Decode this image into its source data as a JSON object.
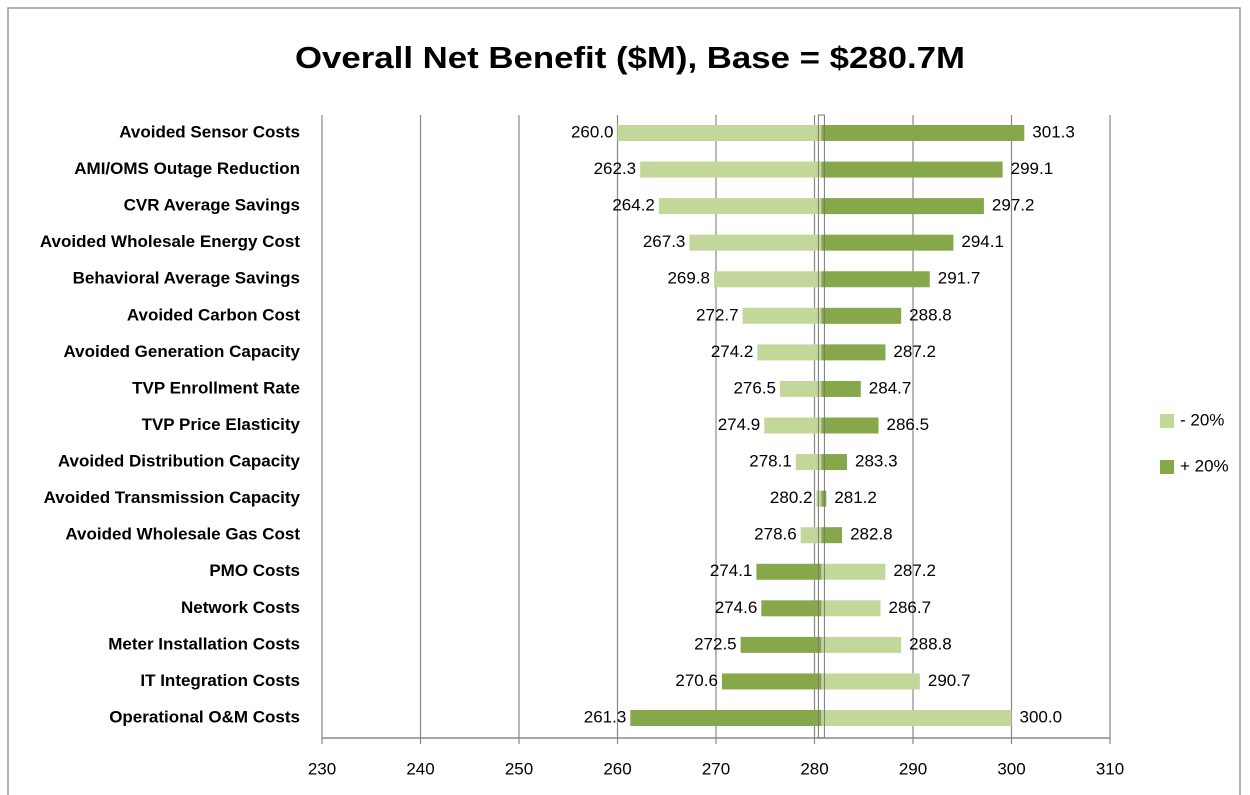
{
  "chart_data": {
    "type": "tornado",
    "title": "Overall Net Benefit ($M), Base = $280.7M",
    "base": 280.7,
    "categories": [
      "Avoided Sensor Costs",
      "AMI/OMS Outage Reduction",
      "CVR Average Savings",
      "Avoided Wholesale Energy Cost",
      "Behavioral Average Savings",
      "Avoided Carbon Cost",
      "Avoided Generation Capacity",
      "TVP Enrollment Rate",
      "TVP Price Elasticity",
      "Avoided Distribution Capacity",
      "Avoided Transmission Capacity",
      "Avoided Wholesale Gas Cost",
      "PMO Costs",
      "Network Costs",
      "Meter Installation Costs",
      "IT Integration Costs",
      "Operational O&M Costs"
    ],
    "series": [
      {
        "name": "- 20%",
        "color": "#c4d79b",
        "values": [
          260.0,
          262.3,
          264.2,
          267.3,
          269.8,
          272.7,
          274.2,
          276.5,
          274.9,
          278.1,
          280.2,
          278.6,
          287.2,
          286.7,
          288.8,
          290.7,
          300.0
        ],
        "value_labels": [
          "260.0",
          "262.3",
          "264.2",
          "267.3",
          "269.8",
          "272.7",
          "274.2",
          "276.5",
          "274.9",
          "278.1",
          "280.2",
          "278.6",
          "287.2",
          "286.7",
          "288.8",
          "290.7",
          "300.0"
        ]
      },
      {
        "name": "+ 20%",
        "color": "#86a84a",
        "values": [
          301.3,
          299.1,
          297.2,
          294.1,
          291.7,
          288.8,
          287.2,
          284.7,
          286.5,
          283.3,
          281.2,
          282.8,
          274.1,
          274.6,
          272.5,
          270.6,
          261.3
        ],
        "value_labels": [
          "301.3",
          "299.1",
          "297.2",
          "294.1",
          "291.7",
          "288.8",
          "287.2",
          "284.7",
          "286.5",
          "283.3",
          "281.2",
          "282.8",
          "274.1",
          "274.6",
          "272.5",
          "270.6",
          "261.3"
        ]
      }
    ],
    "xlim": [
      230,
      310
    ],
    "xticks": [
      230,
      240,
      250,
      260,
      270,
      280,
      290,
      300,
      310
    ],
    "grid": true,
    "legend": "right"
  }
}
